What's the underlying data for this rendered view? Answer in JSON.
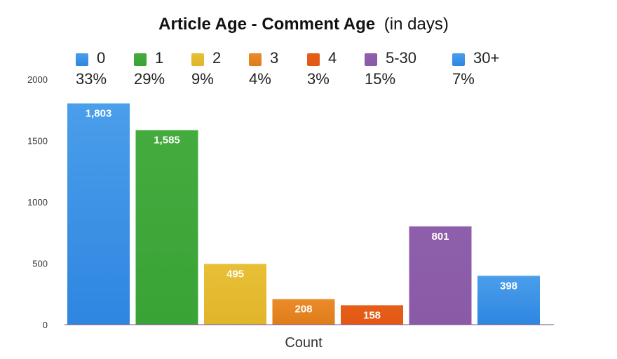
{
  "chart_data": {
    "type": "bar",
    "title": "Article Age - Comment Age",
    "title_suffix": "(in days)",
    "xlabel": "Count",
    "ylabel": "",
    "ylim": [
      0,
      2000
    ],
    "yticks": [
      "0",
      "500",
      "1000",
      "1500",
      "2000"
    ],
    "grid": false,
    "legend_position": "top",
    "series": [
      {
        "name": "0",
        "value": 1803,
        "label": "1,803",
        "percent": "33%",
        "color": "#2f86e0",
        "color_top": "#4a9eea"
      },
      {
        "name": "1",
        "value": 1585,
        "label": "1,585",
        "percent": "29%",
        "color": "#3aa336",
        "color_top": "#44ab3f"
      },
      {
        "name": "2",
        "value": 495,
        "label": "495",
        "percent": "9%",
        "color": "#e0b52a",
        "color_top": "#e8bf36"
      },
      {
        "name": "3",
        "value": 208,
        "label": "208",
        "percent": "4%",
        "color": "#e07c1a",
        "color_top": "#ea8b2a"
      },
      {
        "name": "4",
        "value": 158,
        "label": "158",
        "percent": "3%",
        "color": "#e25714",
        "color_top": "#e55f1a"
      },
      {
        "name": "5-30",
        "value": 801,
        "label": "801",
        "percent": "15%",
        "color": "#8a5aa8",
        "color_top": "#8e5fab"
      },
      {
        "name": "30+",
        "value": 398,
        "label": "398",
        "percent": "7%",
        "color": "#2f86e0",
        "color_top": "#4a9eea"
      }
    ]
  }
}
